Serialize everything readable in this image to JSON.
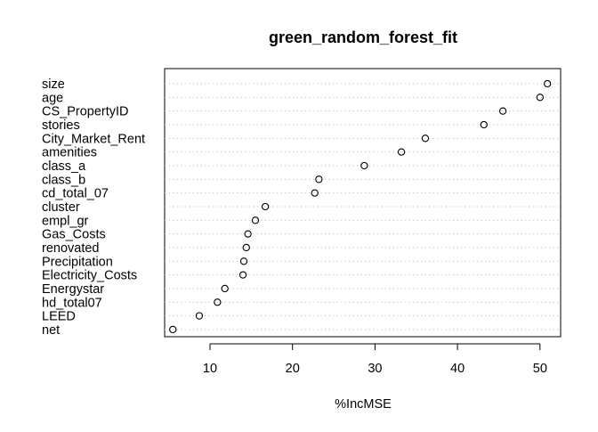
{
  "chart_data": {
    "type": "scatter",
    "subtype": "dotchart",
    "title": "green_random_forest_fit",
    "xlabel": "%IncMSE",
    "ylabel": "",
    "xlim": [
      4.5,
      52.5
    ],
    "x_ticks": [
      10,
      20,
      30,
      40,
      50
    ],
    "x_tick_labels": [
      "10",
      "20",
      "30",
      "40",
      "50"
    ],
    "grid": "dotted horizontal lines per row",
    "marker": "open circle",
    "categories": [
      "size",
      "age",
      "CS_PropertyID",
      "stories",
      "City_Market_Rent",
      "amenities",
      "class_a",
      "class_b",
      "cd_total_07",
      "cluster",
      "empl_gr",
      "Gas_Costs",
      "renovated",
      "Precipitation",
      "Electricity_Costs",
      "Energystar",
      "hd_total07",
      "LEED",
      "net"
    ],
    "values": [
      50.9,
      50.0,
      45.5,
      43.2,
      36.1,
      33.2,
      28.7,
      23.2,
      22.7,
      16.7,
      15.5,
      14.6,
      14.4,
      14.1,
      14.0,
      11.8,
      10.9,
      8.7,
      5.5
    ]
  }
}
